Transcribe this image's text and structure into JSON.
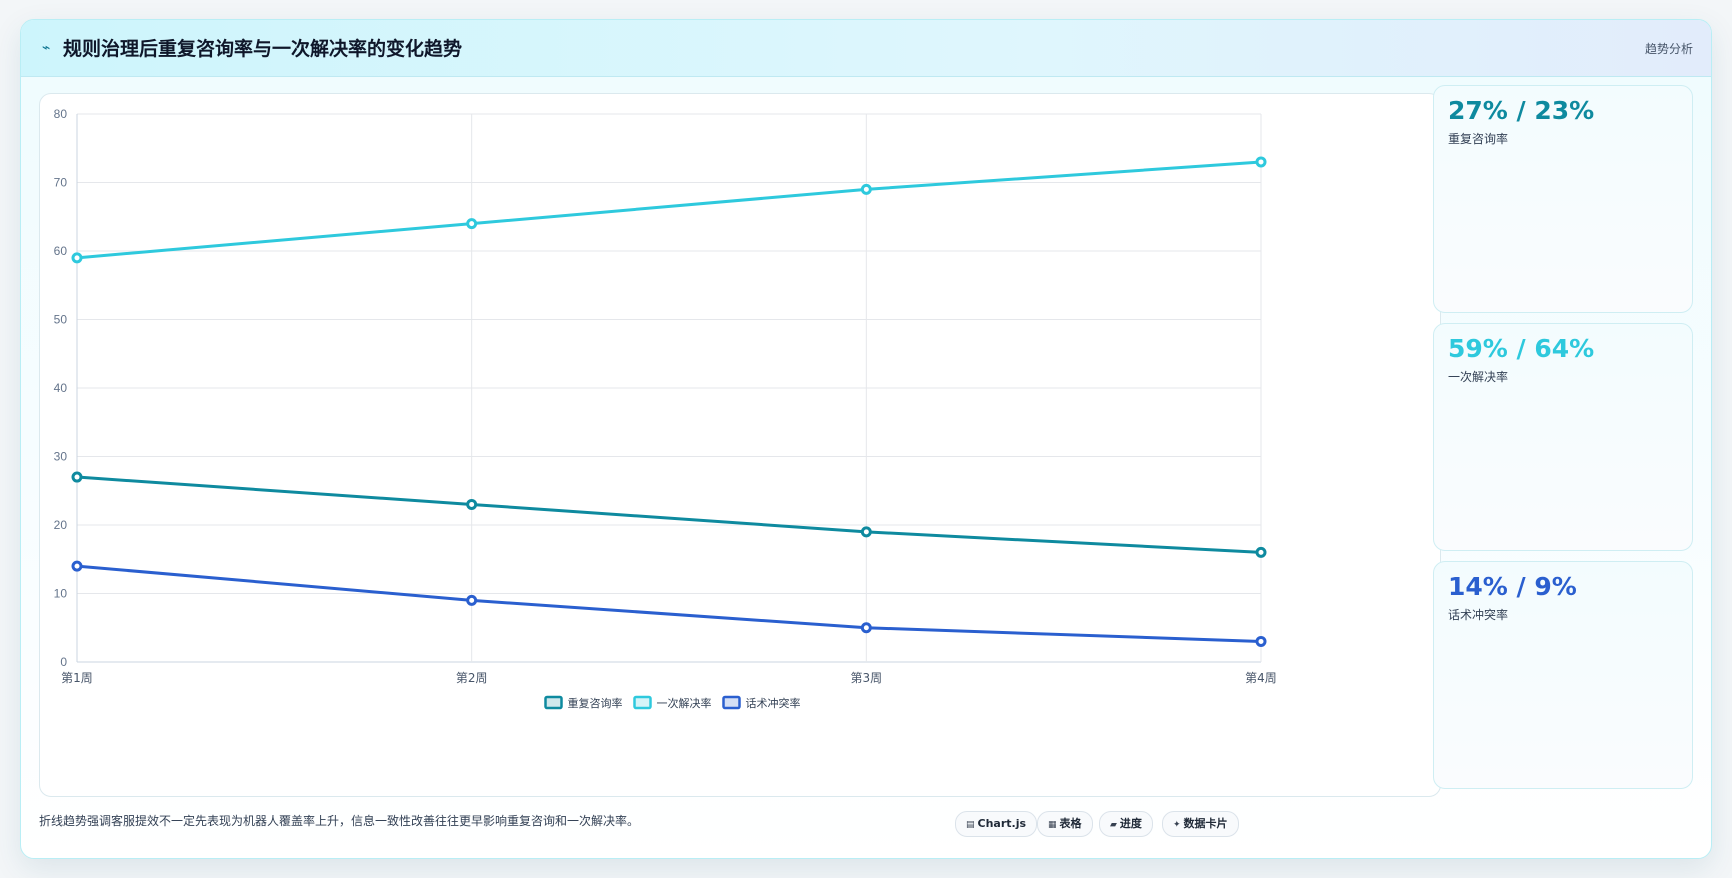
{
  "header": {
    "icon": "⌁",
    "title": "规则治理后重复咨询率与一次解决率的变化趋势",
    "tag": "趋势分析"
  },
  "chart_data": {
    "type": "line",
    "categories": [
      "第1周",
      "第2周",
      "第3周",
      "第4周"
    ],
    "ylim": [
      0,
      80
    ],
    "yticks": [
      0,
      10,
      20,
      30,
      40,
      50,
      60,
      70,
      80
    ],
    "grid": true,
    "legend_position": "bottom",
    "series": [
      {
        "name": "重复咨询率",
        "values": [
          27,
          23,
          19,
          16
        ],
        "color": "#0e8a9f"
      },
      {
        "name": "一次解决率",
        "values": [
          59,
          64,
          69,
          73
        ],
        "color": "#2ec9dd"
      },
      {
        "name": "话术冲突率",
        "values": [
          14,
          9,
          5,
          3
        ],
        "color": "#2a5fcf"
      }
    ]
  },
  "stats": [
    {
      "value": "27% / 23%",
      "label": "重复咨询率",
      "color": "#0e8a9f"
    },
    {
      "value": "59% / 64%",
      "label": "一次解决率",
      "color": "#2ec9dd"
    },
    {
      "value": "14% / 9%",
      "label": "话术冲突率",
      "color": "#2a5fcf"
    }
  ],
  "footnote": "折线趋势强调客服提效不一定先表现为机器人覆盖率上升，信息一致性改善往往更早影响重复咨询和一次解决率。",
  "buttons": [
    {
      "icon": "▤",
      "label": "Chart.js"
    },
    {
      "icon": "▦",
      "label": "表格"
    },
    {
      "icon": "▰",
      "label": "进度"
    },
    {
      "icon": "✦",
      "label": "数据卡片"
    }
  ]
}
